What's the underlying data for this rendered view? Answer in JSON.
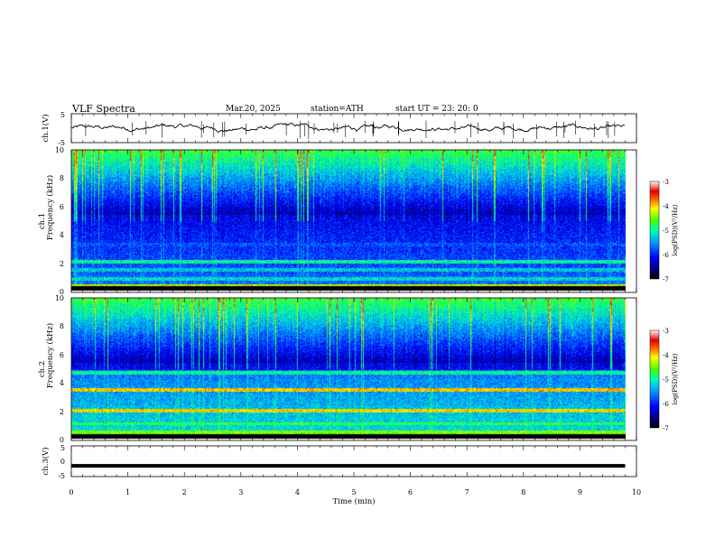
{
  "header": {
    "title": "VLF  Spectra",
    "date": "Mar.20, 2025",
    "station": "station=ATH",
    "start": "start  UT  =   23: 20: 0"
  },
  "chart_data": [
    {
      "type": "line",
      "name": "ch1-waveform",
      "ylabel": "ch.1(V)",
      "ylim": [
        -5,
        5
      ],
      "yticks": [
        "5",
        "-5"
      ],
      "xlim": [
        0,
        10
      ]
    },
    {
      "type": "heatmap",
      "name": "ch1-spectrogram",
      "ylabel_top": "ch.1",
      "ylabel": "Frequency (kHz)",
      "ylim": [
        0,
        10
      ],
      "yticks": [
        "0",
        "2",
        "4",
        "6",
        "8",
        "10"
      ],
      "xlim": [
        0,
        10
      ],
      "colorbar": {
        "label": "log(PSD)(V²/Hz)",
        "range": [
          -7,
          -3
        ],
        "ticks": [
          "-3",
          "-4",
          "-5",
          "-6",
          "-7"
        ]
      },
      "bands": [
        {
          "freq": 4.6,
          "level": -6.6
        },
        {
          "freq": 4.0,
          "level": -6.5
        },
        {
          "freq": 3.4,
          "level": -5.8
        },
        {
          "freq": 2.2,
          "level": -5.0
        },
        {
          "freq": 1.6,
          "level": -5.3
        },
        {
          "freq": 1.0,
          "level": -5.2
        },
        {
          "freq": 0.5,
          "level": -4.2
        }
      ]
    },
    {
      "type": "heatmap",
      "name": "ch2-spectrogram",
      "ylabel_top": "ch.2",
      "ylabel": "Frequency (kHz)",
      "ylim": [
        0,
        10
      ],
      "yticks": [
        "0",
        "2",
        "4",
        "6",
        "8",
        "10"
      ],
      "xlim": [
        0,
        10
      ],
      "colorbar": {
        "label": "log(PSD)(V²/Hz)",
        "range": [
          -7,
          -3
        ],
        "ticks": [
          "-3",
          "-4",
          "-5",
          "-6",
          "-7"
        ]
      },
      "bands": [
        {
          "freq": 4.8,
          "level": -5.0
        },
        {
          "freq": 3.6,
          "level": -4.0
        },
        {
          "freq": 2.1,
          "level": -4.1
        },
        {
          "freq": 1.2,
          "level": -4.8
        },
        {
          "freq": 0.6,
          "level": -4.5
        }
      ]
    },
    {
      "type": "line",
      "name": "ch3-waveform",
      "ylabel": "ch.3(V)",
      "ylim": [
        -5,
        5
      ],
      "yticks": [
        "5",
        "0",
        "-5"
      ],
      "xlim": [
        0,
        10
      ],
      "level": -1.5
    }
  ],
  "xaxis": {
    "label": "Time  (min)",
    "ticks": [
      "0",
      "1",
      "2",
      "3",
      "4",
      "5",
      "6",
      "7",
      "8",
      "9",
      "10"
    ]
  }
}
